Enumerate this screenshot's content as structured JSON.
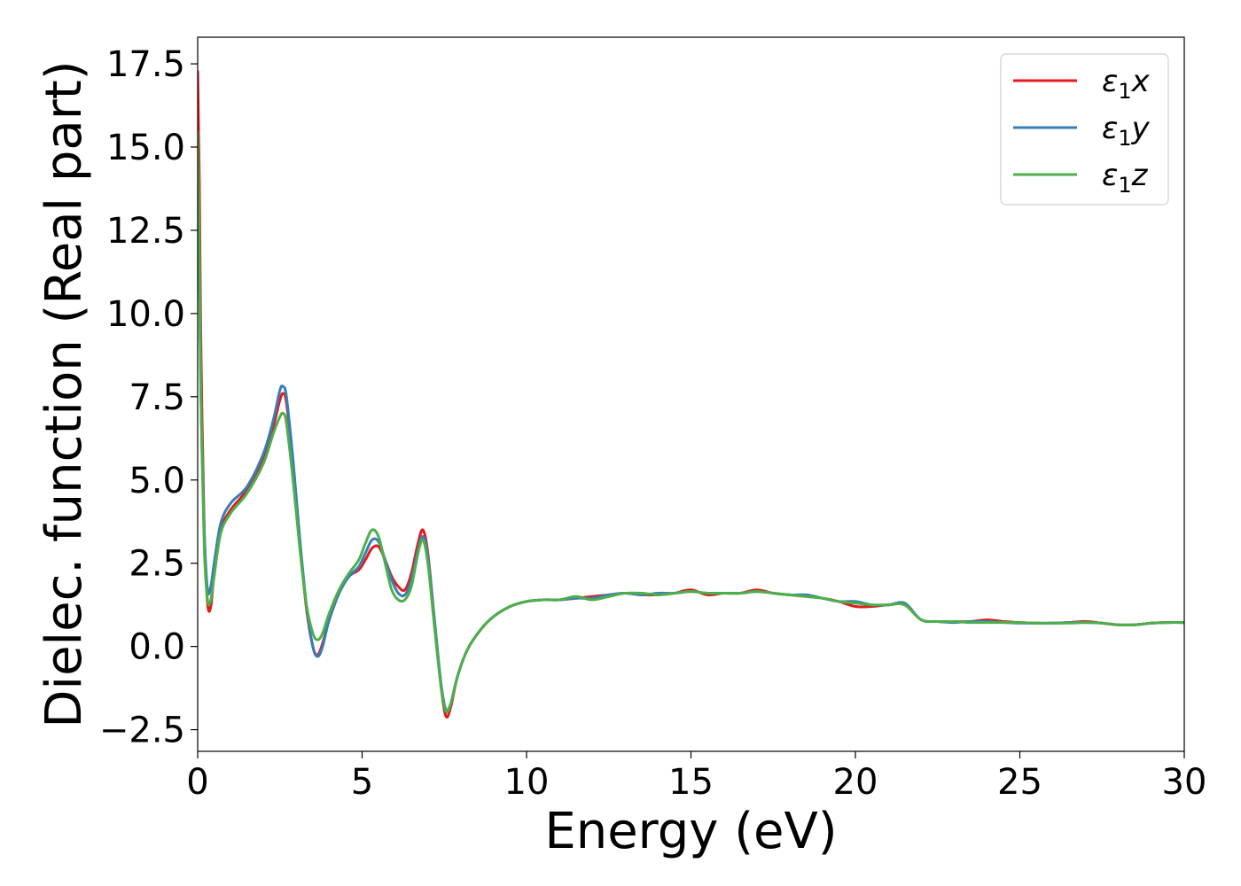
{
  "chart_data": {
    "type": "line",
    "xlabel": "Energy (eV)",
    "ylabel": "Dielec. function (Real part)",
    "xlim": [
      0,
      30
    ],
    "ylim": [
      -3.15,
      18.3
    ],
    "xticks": [
      0,
      5,
      10,
      15,
      20,
      25,
      30
    ],
    "xtick_labels": [
      "0",
      "5",
      "10",
      "15",
      "20",
      "25",
      "30"
    ],
    "yticks": [
      -2.5,
      0.0,
      2.5,
      5.0,
      7.5,
      10.0,
      12.5,
      15.0,
      17.5
    ],
    "ytick_labels": [
      "−2.5",
      "0.0",
      "2.5",
      "5.0",
      "7.5",
      "10.0",
      "12.5",
      "15.0",
      "17.5"
    ],
    "grid": false,
    "legend_position": "top-right",
    "series": [
      {
        "name": "ε",
        "name_sub": "1",
        "name_suffix": "x",
        "color": "#e41a1c",
        "x": [
          0,
          0.05,
          0.1,
          0.2,
          0.3,
          0.4,
          0.5,
          0.7,
          1.0,
          1.5,
          2.0,
          2.3,
          2.5,
          2.6,
          2.7,
          2.9,
          3.1,
          3.3,
          3.5,
          3.65,
          3.8,
          4.0,
          4.3,
          4.6,
          4.9,
          5.1,
          5.3,
          5.5,
          5.7,
          5.9,
          6.1,
          6.3,
          6.5,
          6.7,
          6.85,
          7.0,
          7.2,
          7.4,
          7.55,
          7.7,
          7.9,
          8.2,
          8.6,
          9.0,
          9.5,
          10.0,
          10.5,
          11.0,
          11.5,
          12.0,
          12.5,
          13.0,
          13.5,
          14.0,
          14.5,
          15.0,
          15.5,
          16.0,
          16.5,
          17.0,
          17.5,
          18.0,
          18.5,
          19.0,
          19.5,
          20.0,
          20.5,
          21.0,
          21.5,
          22.0,
          22.5,
          23.0,
          23.5,
          24.0,
          24.5,
          25.0,
          25.5,
          26.0,
          26.5,
          27.0,
          27.5,
          28.0,
          28.5,
          29.0,
          29.5,
          30.0
        ],
        "y": [
          17.3,
          14.0,
          9.0,
          3.5,
          1.3,
          1.2,
          2.2,
          3.5,
          4.1,
          4.7,
          5.6,
          6.6,
          7.4,
          7.6,
          7.3,
          5.5,
          3.2,
          1.2,
          0.0,
          -0.25,
          0.1,
          0.8,
          1.6,
          2.1,
          2.3,
          2.6,
          2.95,
          3.0,
          2.6,
          2.1,
          1.8,
          1.7,
          2.2,
          3.1,
          3.5,
          2.8,
          0.8,
          -1.2,
          -2.1,
          -1.8,
          -0.9,
          -0.1,
          0.5,
          0.9,
          1.2,
          1.35,
          1.4,
          1.4,
          1.45,
          1.5,
          1.55,
          1.6,
          1.55,
          1.55,
          1.6,
          1.7,
          1.55,
          1.6,
          1.6,
          1.7,
          1.6,
          1.55,
          1.5,
          1.45,
          1.35,
          1.2,
          1.2,
          1.25,
          1.25,
          0.8,
          0.75,
          0.75,
          0.75,
          0.8,
          0.75,
          0.72,
          0.7,
          0.7,
          0.72,
          0.75,
          0.7,
          0.65,
          0.65,
          0.7,
          0.72,
          0.72
        ]
      },
      {
        "name": "ε",
        "name_sub": "1",
        "name_suffix": "y",
        "color": "#377eb8",
        "x": [
          0,
          0.05,
          0.1,
          0.2,
          0.3,
          0.4,
          0.5,
          0.7,
          1.0,
          1.5,
          2.0,
          2.3,
          2.5,
          2.6,
          2.7,
          2.9,
          3.1,
          3.3,
          3.5,
          3.65,
          3.8,
          4.0,
          4.3,
          4.6,
          4.9,
          5.1,
          5.3,
          5.5,
          5.7,
          5.9,
          6.1,
          6.3,
          6.5,
          6.7,
          6.85,
          7.0,
          7.2,
          7.4,
          7.55,
          7.7,
          7.9,
          8.2,
          8.6,
          9.0,
          9.5,
          10.0,
          10.5,
          11.0,
          11.5,
          12.0,
          12.5,
          13.0,
          13.5,
          14.0,
          14.5,
          15.0,
          15.5,
          16.0,
          16.5,
          17.0,
          17.5,
          18.0,
          18.5,
          19.0,
          19.5,
          20.0,
          20.5,
          21.0,
          21.5,
          22.0,
          22.5,
          23.0,
          23.5,
          24.0,
          24.5,
          25.0,
          25.5,
          26.0,
          26.5,
          27.0,
          27.5,
          28.0,
          28.5,
          29.0,
          29.5,
          30.0
        ],
        "y": [
          14.0,
          11.5,
          7.5,
          3.5,
          1.7,
          1.8,
          2.5,
          3.7,
          4.3,
          4.8,
          5.8,
          6.8,
          7.7,
          7.8,
          7.5,
          5.6,
          3.3,
          1.3,
          0.0,
          -0.3,
          0.0,
          0.8,
          1.6,
          2.1,
          2.4,
          2.8,
          3.2,
          3.15,
          2.6,
          2.0,
          1.6,
          1.55,
          2.0,
          2.9,
          3.3,
          2.7,
          0.8,
          -1.1,
          -1.9,
          -1.7,
          -0.9,
          -0.1,
          0.5,
          0.9,
          1.2,
          1.35,
          1.4,
          1.4,
          1.45,
          1.45,
          1.55,
          1.6,
          1.55,
          1.6,
          1.6,
          1.65,
          1.6,
          1.6,
          1.6,
          1.65,
          1.6,
          1.55,
          1.55,
          1.45,
          1.35,
          1.35,
          1.25,
          1.25,
          1.3,
          0.8,
          0.75,
          0.72,
          0.75,
          0.75,
          0.72,
          0.7,
          0.7,
          0.7,
          0.72,
          0.72,
          0.7,
          0.65,
          0.65,
          0.7,
          0.72,
          0.72
        ]
      },
      {
        "name": "ε",
        "name_sub": "1",
        "name_suffix": "z",
        "color": "#4daf4a",
        "x": [
          0,
          0.05,
          0.1,
          0.2,
          0.3,
          0.4,
          0.5,
          0.7,
          1.0,
          1.5,
          2.0,
          2.3,
          2.5,
          2.6,
          2.7,
          2.9,
          3.1,
          3.3,
          3.5,
          3.65,
          3.8,
          4.0,
          4.3,
          4.6,
          4.9,
          5.1,
          5.3,
          5.5,
          5.7,
          5.9,
          6.1,
          6.3,
          6.5,
          6.7,
          6.85,
          7.0,
          7.2,
          7.4,
          7.55,
          7.7,
          7.9,
          8.2,
          8.6,
          9.0,
          9.5,
          10.0,
          10.5,
          11.0,
          11.5,
          12.0,
          12.5,
          13.0,
          13.5,
          14.0,
          14.5,
          15.0,
          15.5,
          16.0,
          16.5,
          17.0,
          17.5,
          18.0,
          18.5,
          19.0,
          19.5,
          20.0,
          20.5,
          21.0,
          21.5,
          22.0,
          22.5,
          23.0,
          23.5,
          24.0,
          24.5,
          25.0,
          25.5,
          26.0,
          26.5,
          27.0,
          27.5,
          28.0,
          28.5,
          29.0,
          29.5,
          30.0
        ],
        "y": [
          15.5,
          12.0,
          7.5,
          3.0,
          1.4,
          1.4,
          2.1,
          3.4,
          4.0,
          4.6,
          5.5,
          6.4,
          6.9,
          7.0,
          6.7,
          5.0,
          3.0,
          1.3,
          0.4,
          0.2,
          0.4,
          1.0,
          1.7,
          2.2,
          2.6,
          3.1,
          3.5,
          3.3,
          2.5,
          1.7,
          1.4,
          1.4,
          1.8,
          2.8,
          3.2,
          2.5,
          0.6,
          -1.2,
          -1.95,
          -1.7,
          -0.9,
          -0.1,
          0.5,
          0.9,
          1.2,
          1.35,
          1.4,
          1.4,
          1.5,
          1.4,
          1.5,
          1.6,
          1.6,
          1.55,
          1.6,
          1.65,
          1.6,
          1.6,
          1.6,
          1.65,
          1.6,
          1.55,
          1.5,
          1.45,
          1.35,
          1.3,
          1.25,
          1.25,
          1.25,
          0.8,
          0.75,
          0.75,
          0.72,
          0.72,
          0.72,
          0.72,
          0.7,
          0.7,
          0.7,
          0.72,
          0.7,
          0.65,
          0.65,
          0.7,
          0.72,
          0.72
        ]
      }
    ]
  }
}
